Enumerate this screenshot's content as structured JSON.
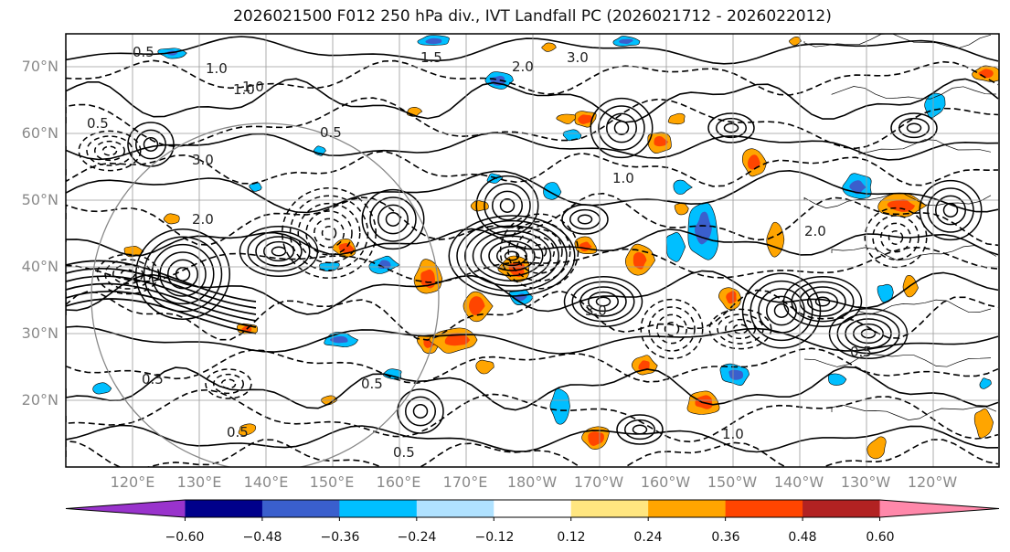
{
  "title": "2026021500 F012 250 hPa div., IVT Landfall PC (2026021712 - 2026022012)",
  "latitude_labels": [
    "70°N",
    "60°N",
    "50°N",
    "40°N",
    "30°N",
    "20°N"
  ],
  "longitude_labels": [
    "120°E",
    "130°E",
    "140°E",
    "150°E",
    "160°E",
    "170°E",
    "180°W",
    "170°W",
    "160°W",
    "150°W",
    "140°W",
    "130°W",
    "120°W"
  ],
  "contour_labels": [
    "0.5",
    "1.0",
    "1.5",
    "2.0",
    "3.0",
    "0.5",
    "1.0",
    "0.5",
    "3.0",
    "0.5",
    "0.5",
    "1.0",
    "2.0",
    "3.0",
    "0.5",
    "1.0",
    "2.0",
    "0.5",
    "1.0",
    "0.5"
  ],
  "colorbar": {
    "ticks": [
      "−0.60",
      "−0.48",
      "−0.36",
      "−0.24",
      "−0.12",
      "0.12",
      "0.24",
      "0.36",
      "0.48",
      "0.60"
    ],
    "colors": [
      "#9933cc",
      "#00008b",
      "#3a5fcd",
      "#00bfff",
      "#b0e2ff",
      "#ffffff",
      "#ffe680",
      "#ffa500",
      "#ff4500",
      "#b22222",
      "#ff88aa"
    ]
  },
  "contour_colors": {
    "positive": "#000000",
    "negative": "#000000",
    "ring": "#888888"
  }
}
